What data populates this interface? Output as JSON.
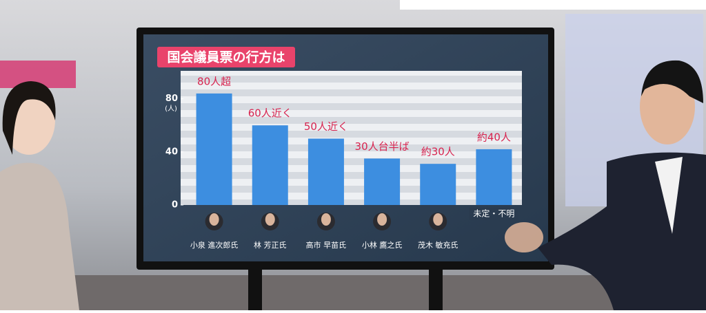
{
  "chart_data": {
    "type": "bar",
    "title": "国会議員票の行方は",
    "y_unit": "(人)",
    "categories": [
      "小泉 進次郎氏",
      "林 芳正氏",
      "高市 早苗氏",
      "小林 鷹之氏",
      "茂木 敏充氏",
      "未定・不明"
    ],
    "values": [
      84,
      60,
      50,
      35,
      31,
      42
    ],
    "value_labels": [
      "80人超",
      "60人近く",
      "50人近く",
      "30人台半ば",
      "約30人",
      "約40人"
    ],
    "color": "#3d8ee0",
    "ylim": [
      0,
      100
    ],
    "yticks": [
      0,
      40,
      80
    ]
  }
}
